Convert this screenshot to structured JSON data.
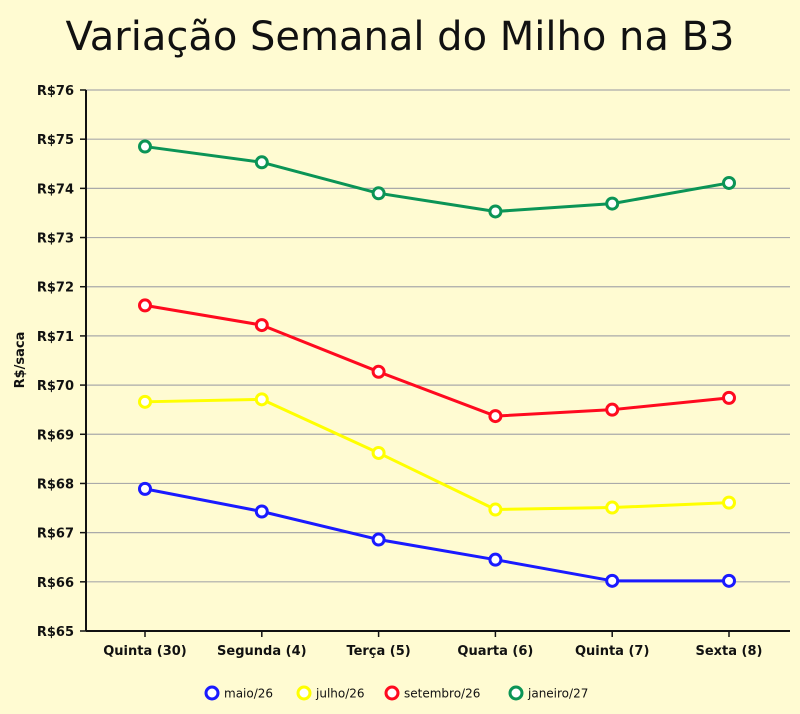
{
  "chart_data": {
    "type": "line",
    "title": "Variação Semanal do Milho na B3",
    "ylabel": "R$/saca",
    "xlabel": "",
    "categories": [
      "Quinta (30)",
      "Segunda (4)",
      "Terça (5)",
      "Quarta (6)",
      "Quinta (7)",
      "Sexta (8)"
    ],
    "ylim": [
      65,
      76
    ],
    "yticks": [
      65,
      66,
      67,
      68,
      69,
      70,
      71,
      72,
      73,
      74,
      75,
      76
    ],
    "ytick_labels": [
      "R$65",
      "R$66",
      "R$67",
      "R$68",
      "R$69",
      "R$70",
      "R$71",
      "R$72",
      "R$73",
      "R$74",
      "R$75",
      "R$76"
    ],
    "grid": "horizontal",
    "legend_position": "bottom",
    "series": [
      {
        "name": "maio/26",
        "color": "#1a1aff",
        "values": [
          67.89,
          67.43,
          66.86,
          66.45,
          66.02,
          66.02
        ]
      },
      {
        "name": "julho/26",
        "color": "#ffff00",
        "values": [
          69.66,
          69.71,
          68.62,
          67.47,
          67.51,
          67.61
        ]
      },
      {
        "name": "setembro/26",
        "color": "#ff0a1f",
        "values": [
          71.62,
          71.22,
          70.27,
          69.37,
          69.5,
          69.74
        ]
      },
      {
        "name": "janeiro/27",
        "color": "#0b9456",
        "values": [
          74.85,
          74.53,
          73.9,
          73.53,
          73.69,
          74.11
        ]
      }
    ]
  }
}
